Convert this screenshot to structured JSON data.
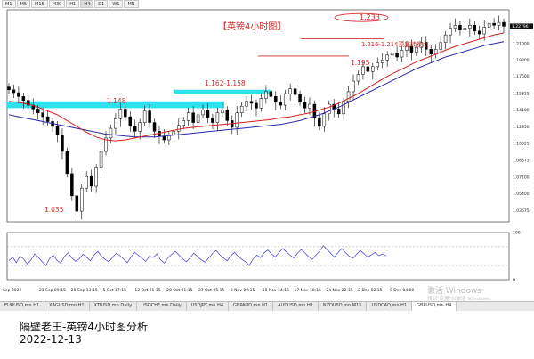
{
  "timeframes": [
    "M1",
    "M5",
    "M15",
    "M30",
    "H1",
    "H4",
    "D1",
    "W1",
    "MN"
  ],
  "active_timeframe": "H4",
  "chart_data": {
    "type": "line",
    "symbol_price_readout": "1.22796",
    "title": "【英镑4小时图】",
    "x_tick_labels": [
      "Sep 2022",
      "21 Sep 09:15",
      "28 Sep 13:15",
      "5 Oct 17:15",
      "12 Oct 21:15",
      "20 Oct 01:15",
      "27 Oct 05:15",
      "3 Nov 09:15",
      "10 Nov 14:15",
      "17 Nov 18:15",
      "24 Nov 22:15",
      "2 Dec 02:15",
      "9 Dec 04:00"
    ],
    "y_tick_labels": [
      "1.22750",
      "1.21000",
      "1.19300",
      "1.17600",
      "1.15825",
      "1.14100",
      "1.12350",
      "1.10625",
      "1.08875",
      "1.07100",
      "1.05400",
      "1.03675"
    ],
    "ylim": [
      1.025,
      1.245
    ],
    "annotations": [
      {
        "text": "1.233"
      },
      {
        "text": "1.216-1.214顶底转换点"
      },
      {
        "text": "1.195"
      },
      {
        "text": "1.162-1.158"
      },
      {
        "text": "1.148"
      },
      {
        "text": "1.035"
      }
    ],
    "zones": [
      {
        "name": "zone-1148",
        "from": 1.143,
        "to": 1.15,
        "color": "#22e0ee"
      },
      {
        "name": "zone-1162-1158",
        "from": 1.158,
        "to": 1.162,
        "color": "#22e0ee"
      }
    ],
    "levels": [
      {
        "name": "level-1216",
        "value": 1.215
      },
      {
        "name": "level-1195",
        "value": 1.197
      }
    ],
    "close_series": [
      1.162,
      1.159,
      1.155,
      1.151,
      1.146,
      1.142,
      1.138,
      1.134,
      1.129,
      1.124,
      1.115,
      1.098,
      1.075,
      1.052,
      1.036,
      1.06,
      1.072,
      1.062,
      1.081,
      1.098,
      1.112,
      1.122,
      1.132,
      1.142,
      1.134,
      1.124,
      1.119,
      1.128,
      1.14,
      1.128,
      1.119,
      1.114,
      1.11,
      1.115,
      1.119,
      1.125,
      1.13,
      1.138,
      1.128,
      1.136,
      1.141,
      1.133,
      1.128,
      1.138,
      1.141,
      1.13,
      1.123,
      1.138,
      1.145,
      1.15,
      1.148,
      1.143,
      1.153,
      1.16,
      1.155,
      1.149,
      1.146,
      1.158,
      1.163,
      1.157,
      1.149,
      1.143,
      1.147,
      1.133,
      1.124,
      1.137,
      1.147,
      1.142,
      1.137,
      1.15,
      1.16,
      1.171,
      1.178,
      1.186,
      1.181,
      1.186,
      1.19,
      1.193,
      1.198,
      1.2,
      1.196,
      1.203,
      1.207,
      1.201,
      1.206,
      1.211,
      1.204,
      1.199,
      1.204,
      1.211,
      1.219,
      1.226,
      1.229,
      1.224,
      1.226,
      1.229,
      1.223,
      1.22,
      1.227,
      1.231,
      1.229,
      1.232,
      1.228
    ],
    "ma_red": [
      1.15,
      1.149,
      1.147,
      1.144,
      1.14,
      1.136,
      1.13,
      1.124,
      1.118,
      1.113,
      1.11,
      1.109,
      1.11,
      1.112,
      1.114,
      1.116,
      1.118,
      1.12,
      1.122,
      1.123,
      1.124,
      1.125,
      1.126,
      1.127,
      1.128,
      1.129,
      1.13,
      1.131,
      1.133,
      1.134,
      1.136,
      1.138,
      1.141,
      1.144,
      1.148,
      1.153,
      1.158,
      1.164,
      1.17,
      1.176,
      1.181,
      1.186,
      1.191,
      1.195,
      1.199,
      1.203,
      1.207,
      1.21,
      1.213,
      1.216,
      1.219,
      1.221
    ],
    "ma_blue": [
      1.136,
      1.134,
      1.132,
      1.13,
      1.128,
      1.126,
      1.124,
      1.122,
      1.12,
      1.118,
      1.116,
      1.115,
      1.114,
      1.113,
      1.113,
      1.113,
      1.114,
      1.115,
      1.116,
      1.117,
      1.118,
      1.119,
      1.12,
      1.121,
      1.122,
      1.123,
      1.124,
      1.125,
      1.126,
      1.128,
      1.13,
      1.133,
      1.136,
      1.14,
      1.144,
      1.149,
      1.154,
      1.159,
      1.164,
      1.169,
      1.174,
      1.179,
      1.184,
      1.188,
      1.192,
      1.196,
      1.199,
      1.202,
      1.205,
      1.208,
      1.21,
      1.212
    ],
    "oscillator": {
      "y_tick_labels": [
        "100",
        "0"
      ],
      "ylim": [
        0,
        100
      ],
      "values": [
        40,
        48,
        36,
        50,
        44,
        33,
        42,
        55,
        47,
        38,
        30,
        45,
        52,
        41,
        35,
        49,
        57,
        46,
        39,
        44,
        54,
        48,
        40,
        52,
        60,
        50,
        43,
        38,
        47,
        56,
        51,
        44,
        36,
        48,
        58,
        52,
        45,
        39,
        50,
        47,
        55,
        42,
        35,
        46,
        54,
        60,
        52,
        44,
        38,
        47,
        56,
        49,
        42,
        37,
        46,
        55,
        62,
        53,
        46,
        40,
        51,
        58,
        49,
        43,
        38,
        30,
        44,
        52,
        47,
        57,
        63,
        55,
        48,
        58,
        66,
        59,
        52,
        46,
        56,
        64,
        57,
        49,
        43,
        52,
        61,
        72,
        64,
        56,
        48,
        58,
        66,
        57,
        50,
        45,
        54,
        62,
        55,
        48,
        53,
        58,
        51,
        55,
        50
      ]
    }
  },
  "tabs": [
    "EURUSD,mn H1",
    "XAGUSD,mn H1",
    "XTIUSD,mn Daily",
    "USDCHF,mn Daily",
    "USDJPY,mn H4",
    "GBPAUD,mn H1",
    "AUDUSD,mn H1",
    "NZDUSD,mn M15",
    "USDCAD,mn H1",
    "GBPUSD,mn H4"
  ],
  "active_tab": "GBPUSD,mn H4",
  "watermark": {
    "line1": "激活 Windows",
    "line2": "转到\"设置\"以激活 Windows。"
  },
  "caption": {
    "line1": "隔壁老王-英镑4小时图分析",
    "line2": "2022-12-13"
  },
  "colors": {
    "red_ma": "#d61f1f",
    "blue_ma": "#2a2aa8",
    "annotation": "#d62a2a",
    "zone": "#22e0ee",
    "candle": "#000000"
  }
}
